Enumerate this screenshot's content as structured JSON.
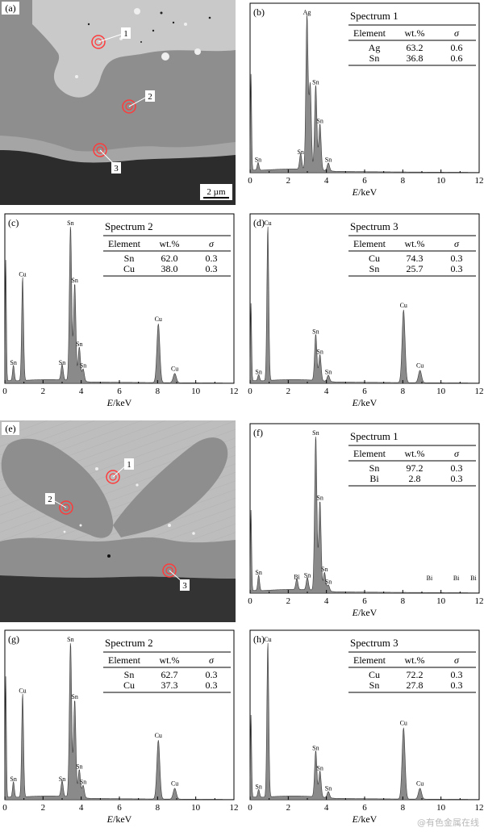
{
  "sem_images": [
    {
      "id": "a",
      "tag": "(a)",
      "scale_bar": "2 µm",
      "markers": [
        {
          "label": "1"
        },
        {
          "label": "2"
        },
        {
          "label": "3"
        }
      ]
    },
    {
      "id": "e",
      "tag": "(e)",
      "scale_bar": "",
      "markers": [
        {
          "label": "1"
        },
        {
          "label": "2"
        },
        {
          "label": "3"
        }
      ]
    }
  ],
  "chart_data": [
    {
      "id": "b",
      "type": "area",
      "tag": "b",
      "title": "Spectrum 1",
      "xlabel": "E/keV",
      "xlim": [
        0,
        12
      ],
      "xticks": [
        0,
        2,
        4,
        6,
        8,
        10,
        12
      ],
      "table_headers": [
        "Element",
        "wt.%",
        "σ"
      ],
      "table_rows": [
        [
          "Ag",
          "63.2",
          "0.6"
        ],
        [
          "Sn",
          "36.8",
          "0.6"
        ]
      ],
      "peaks": [
        {
          "x": 0.05,
          "h": 0.62,
          "label": ""
        },
        {
          "x": 0.42,
          "h": 0.05,
          "label": "Sn"
        },
        {
          "x": 2.65,
          "h": 0.1,
          "label": "Sn"
        },
        {
          "x": 2.98,
          "h": 1.0,
          "label": "Ag"
        },
        {
          "x": 3.15,
          "h": 0.55,
          "label": ""
        },
        {
          "x": 3.44,
          "h": 0.55,
          "label": "Sn"
        },
        {
          "x": 3.66,
          "h": 0.3,
          "label": "Sn"
        },
        {
          "x": 4.1,
          "h": 0.05,
          "label": "Sn"
        }
      ]
    },
    {
      "id": "c",
      "type": "area",
      "tag": "c",
      "title": "Spectrum 2",
      "xlabel": "E/keV",
      "xlim": [
        0,
        12
      ],
      "xticks": [
        0,
        2,
        4,
        6,
        8,
        10,
        12
      ],
      "table_headers": [
        "Element",
        "wt.%",
        "σ"
      ],
      "table_rows": [
        [
          "Sn",
          "62.0",
          "0.3"
        ],
        [
          "Cu",
          "38.0",
          "0.3"
        ]
      ],
      "peaks": [
        {
          "x": 0.05,
          "h": 0.78,
          "label": ""
        },
        {
          "x": 0.45,
          "h": 0.1,
          "label": "Sn"
        },
        {
          "x": 0.93,
          "h": 0.67,
          "label": "Cu"
        },
        {
          "x": 3.0,
          "h": 0.1,
          "label": "Sn"
        },
        {
          "x": 3.44,
          "h": 1.0,
          "label": "Sn"
        },
        {
          "x": 3.66,
          "h": 0.63,
          "label": "Sn"
        },
        {
          "x": 3.9,
          "h": 0.22,
          "label": "Sn"
        },
        {
          "x": 4.1,
          "h": 0.08,
          "label": "Sn"
        },
        {
          "x": 8.04,
          "h": 0.38,
          "label": "Cu"
        },
        {
          "x": 8.9,
          "h": 0.06,
          "label": "Cu"
        }
      ]
    },
    {
      "id": "d",
      "type": "area",
      "tag": "d",
      "title": "Spectrum 3",
      "xlabel": "E/keV",
      "xlim": [
        0,
        12
      ],
      "xticks": [
        0,
        2,
        4,
        6,
        8,
        10,
        12
      ],
      "table_headers": [
        "Element",
        "wt.%",
        "σ"
      ],
      "table_rows": [
        [
          "Cu",
          "74.3",
          "0.3"
        ],
        [
          "Sn",
          "25.7",
          "0.3"
        ]
      ],
      "peaks": [
        {
          "x": 0.05,
          "h": 0.5,
          "label": ""
        },
        {
          "x": 0.45,
          "h": 0.04,
          "label": "Sn"
        },
        {
          "x": 0.93,
          "h": 1.0,
          "label": "Cu"
        },
        {
          "x": 3.44,
          "h": 0.3,
          "label": "Sn"
        },
        {
          "x": 3.66,
          "h": 0.17,
          "label": "Sn"
        },
        {
          "x": 4.1,
          "h": 0.04,
          "label": "Sn"
        },
        {
          "x": 8.04,
          "h": 0.47,
          "label": "Cu"
        },
        {
          "x": 8.9,
          "h": 0.08,
          "label": "Cu"
        }
      ]
    },
    {
      "id": "f",
      "type": "area",
      "tag": "f",
      "title": "Spectrum 1",
      "xlabel": "E/keV",
      "xlim": [
        0,
        12
      ],
      "xticks": [
        0,
        2,
        4,
        6,
        8,
        10,
        12
      ],
      "table_headers": [
        "Element",
        "wt.%",
        "σ"
      ],
      "table_rows": [
        [
          "Sn",
          "97.2",
          "0.3"
        ],
        [
          "Bi",
          "2.8",
          "0.3"
        ]
      ],
      "peaks": [
        {
          "x": 0.05,
          "h": 0.52,
          "label": ""
        },
        {
          "x": 0.45,
          "h": 0.1,
          "label": "Sn"
        },
        {
          "x": 2.45,
          "h": 0.07,
          "label": "Bi"
        },
        {
          "x": 3.0,
          "h": 0.08,
          "label": "Sn"
        },
        {
          "x": 3.44,
          "h": 1.0,
          "label": "Sn"
        },
        {
          "x": 3.66,
          "h": 0.58,
          "label": "Sn"
        },
        {
          "x": 3.9,
          "h": 0.12,
          "label": "Sn"
        },
        {
          "x": 4.1,
          "h": 0.04,
          "label": "Sn"
        },
        {
          "x": 9.4,
          "h": 0.0,
          "label": "Bi"
        },
        {
          "x": 10.8,
          "h": 0.0,
          "label": "Bi"
        },
        {
          "x": 11.7,
          "h": 0.0,
          "label": "Bi"
        }
      ]
    },
    {
      "id": "g",
      "type": "area",
      "tag": "(g)",
      "title": "Spectrum 2",
      "xlabel": "E/keV",
      "xlim": [
        0,
        12
      ],
      "xticks": [
        0,
        2,
        4,
        6,
        8,
        10,
        12
      ],
      "table_headers": [
        "Element",
        "wt.%",
        "σ"
      ],
      "table_rows": [
        [
          "Sn",
          "62.7",
          "0.3"
        ],
        [
          "Cu",
          "37.3",
          "0.3"
        ]
      ],
      "peaks": [
        {
          "x": 0.05,
          "h": 0.78,
          "label": ""
        },
        {
          "x": 0.45,
          "h": 0.1,
          "label": "Sn"
        },
        {
          "x": 0.93,
          "h": 0.67,
          "label": "Cu"
        },
        {
          "x": 3.0,
          "h": 0.1,
          "label": "Sn"
        },
        {
          "x": 3.44,
          "h": 1.0,
          "label": "Sn"
        },
        {
          "x": 3.66,
          "h": 0.63,
          "label": "Sn"
        },
        {
          "x": 3.9,
          "h": 0.18,
          "label": "Sn"
        },
        {
          "x": 4.1,
          "h": 0.08,
          "label": "Sn"
        },
        {
          "x": 8.04,
          "h": 0.38,
          "label": "Cu"
        },
        {
          "x": 8.9,
          "h": 0.07,
          "label": "Cu"
        }
      ]
    },
    {
      "id": "h",
      "type": "area",
      "tag": "(h)",
      "title": "Spectrum 3",
      "xlabel": "E/keV",
      "xlim": [
        0,
        12
      ],
      "xticks": [
        0,
        2,
        4,
        6,
        8,
        10,
        12
      ],
      "table_headers": [
        "Element",
        "wt.%",
        "σ"
      ],
      "table_rows": [
        [
          "Cu",
          "72.2",
          "0.3"
        ],
        [
          "Sn",
          "27.8",
          "0.3"
        ]
      ],
      "peaks": [
        {
          "x": 0.05,
          "h": 0.53,
          "label": ""
        },
        {
          "x": 0.45,
          "h": 0.05,
          "label": "Sn"
        },
        {
          "x": 0.93,
          "h": 1.0,
          "label": "Cu"
        },
        {
          "x": 3.44,
          "h": 0.3,
          "label": "Sn"
        },
        {
          "x": 3.66,
          "h": 0.17,
          "label": "Sn"
        },
        {
          "x": 4.1,
          "h": 0.04,
          "label": "Sn"
        },
        {
          "x": 8.04,
          "h": 0.46,
          "label": "Cu"
        },
        {
          "x": 8.9,
          "h": 0.07,
          "label": "Cu"
        }
      ]
    }
  ],
  "watermark": "@有色金属在线"
}
